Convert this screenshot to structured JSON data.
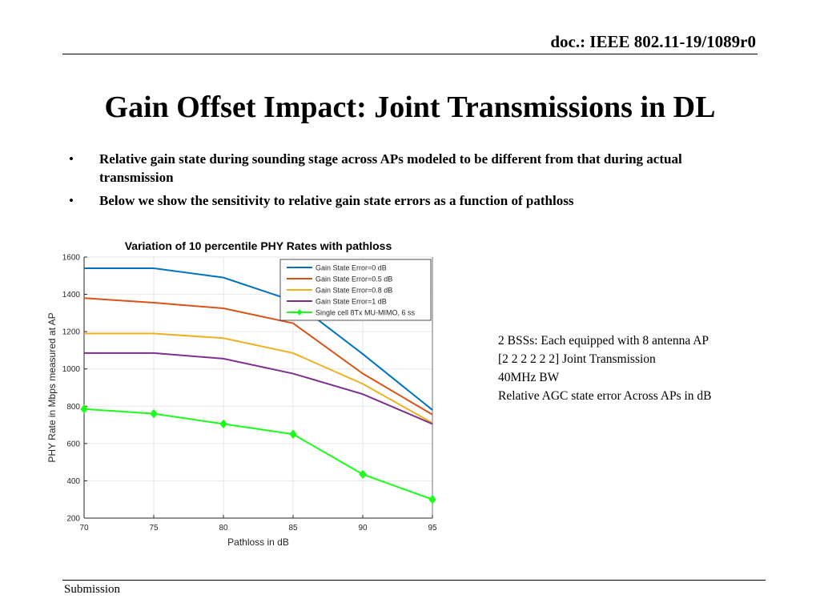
{
  "header": {
    "doc_id": "doc.: IEEE 802.11-19/1089r0"
  },
  "title": "Gain Offset Impact: Joint Transmissions in DL",
  "bullets": [
    "Relative gain state during sounding stage across APs modeled to be different from that during actual transmission",
    "Below we show the sensitivity to relative gain state errors as a function of pathloss"
  ],
  "bullet_marker": "•",
  "notes": [
    "2 BSSs: Each equipped with 8 antenna AP",
    "[2 2 2 2 2 2] Joint Transmission",
    "40MHz BW",
    "Relative AGC state error Across APs in dB"
  ],
  "footer": {
    "label": "Submission"
  },
  "chart_data": {
    "type": "line",
    "title": "Variation of 10 percentile PHY Rates with pathloss",
    "xlabel": "Pathloss in dB",
    "ylabel": "PHY Rate in Mbps measured at AP",
    "xlim": [
      70,
      95
    ],
    "ylim": [
      200,
      1600
    ],
    "xticks": [
      70,
      75,
      80,
      85,
      90,
      95
    ],
    "yticks": [
      200,
      400,
      600,
      800,
      1000,
      1200,
      1400,
      1600
    ],
    "grid": true,
    "legend_position": "top-right",
    "x": [
      70,
      75,
      80,
      85,
      90,
      95
    ],
    "series": [
      {
        "name": "Gain State Error=0 dB",
        "color": "#0072bd",
        "marker": "none",
        "values": [
          1540,
          1540,
          1490,
          1365,
          1080,
          780
        ]
      },
      {
        "name": "Gain State Error=0.5 dB",
        "color": "#d95319",
        "marker": "none",
        "values": [
          1380,
          1355,
          1325,
          1245,
          975,
          755
        ]
      },
      {
        "name": "Gain State Error=0.8 dB",
        "color": "#edb120",
        "marker": "none",
        "values": [
          1190,
          1190,
          1165,
          1085,
          920,
          710
        ]
      },
      {
        "name": "Gain State Error=1 dB",
        "color": "#7e2f8e",
        "marker": "none",
        "values": [
          1085,
          1085,
          1055,
          975,
          865,
          705
        ]
      },
      {
        "name": "Single cell 8Tx MU-MIMO, 6 ss",
        "color": "#1aff1a",
        "marker": "diamond",
        "values": [
          785,
          760,
          705,
          650,
          435,
          300
        ]
      }
    ]
  }
}
